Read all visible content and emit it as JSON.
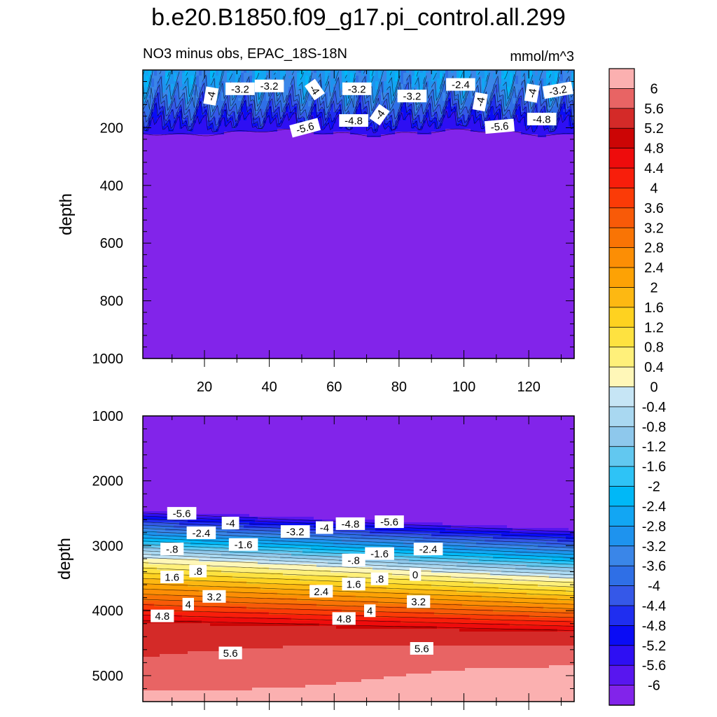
{
  "title": "b.e20.B1850.f09_g17.pi_control.all.299",
  "subtitle_left": "NO3 minus obs, EPAC_18S-18N",
  "subtitle_right": "mmol/m^3",
  "ylabel": "depth",
  "colorbar": {
    "levels": [
      -6,
      -5.6,
      -5.2,
      -4.8,
      -4.4,
      -4,
      -3.6,
      -3.2,
      -2.8,
      -2.4,
      -2,
      -1.6,
      -1.2,
      -0.8,
      -0.4,
      0,
      0.4,
      0.8,
      1.2,
      1.6,
      2,
      2.4,
      2.8,
      3.2,
      3.6,
      4,
      4.4,
      4.8,
      5.2,
      5.6,
      6
    ],
    "labels": [
      "-6",
      "-5.6",
      "-5.2",
      "-4.8",
      "-4.4",
      "-4",
      "-3.6",
      "-3.2",
      "-2.8",
      "-2.4",
      "-2",
      "-1.6",
      "-1.2",
      "-0.8",
      "-0.4",
      "0",
      "0.4",
      "0.8",
      "1.2",
      "1.6",
      "2",
      "2.4",
      "2.8",
      "3.2",
      "3.6",
      "4",
      "4.4",
      "4.8",
      "5.2",
      "5.6",
      "6"
    ],
    "colors": [
      "#8224ea",
      "#5816ef",
      "#2e0ff3",
      "#0a0cf5",
      "#1f2ef0",
      "#3558e8",
      "#2f6fe6",
      "#3a86e8",
      "#1e93ee",
      "#12a6f3",
      "#00b8f7",
      "#2ec3f6",
      "#62c8f0",
      "#8ec8ec",
      "#a9d8f1",
      "#c6e5f5",
      "#fff7b8",
      "#fff07a",
      "#fee240",
      "#fed220",
      "#fdb812",
      "#fda205",
      "#fc8e05",
      "#f97405",
      "#f85a08",
      "#fb3b07",
      "#f81e0b",
      "#ee0c0c",
      "#cc0505",
      "#d42a28",
      "#e86464",
      "#fbb0b0"
    ]
  },
  "chart_data": [
    {
      "type": "heatmap",
      "panel": "upper",
      "title": "NO3 minus obs, EPAC_18S-18N",
      "units": "mmol/m^3",
      "xlabel": "",
      "ylabel": "depth",
      "xlim": [
        1,
        134
      ],
      "ylim": [
        0,
        1000
      ],
      "y_inverted": true,
      "xticks": [
        20,
        40,
        60,
        80,
        100,
        120
      ],
      "xtick_labels": [
        "20",
        "40",
        "60",
        "80",
        "100",
        "120"
      ],
      "yticks": [
        200,
        400,
        600,
        800,
        1000
      ],
      "ytick_labels": [
        "200",
        "400",
        "600",
        "800",
        "1000"
      ],
      "contour_labels": [
        {
          "text": "-4",
          "x": 22,
          "y": 90,
          "rot": -80
        },
        {
          "text": "-3.2",
          "x": 31,
          "y": 65,
          "rot": 0
        },
        {
          "text": "-3.2",
          "x": 40,
          "y": 55,
          "rot": 0
        },
        {
          "text": "-4",
          "x": 54,
          "y": 68,
          "rot": 55
        },
        {
          "text": "-3.2",
          "x": 67,
          "y": 65,
          "rot": 0
        },
        {
          "text": "-3.2",
          "x": 84,
          "y": 90,
          "rot": 0
        },
        {
          "text": "-2.4",
          "x": 99,
          "y": 50,
          "rot": 0
        },
        {
          "text": "-4",
          "x": 105,
          "y": 110,
          "rot": -80
        },
        {
          "text": "-4",
          "x": 121,
          "y": 80,
          "rot": -80
        },
        {
          "text": "-3.2",
          "x": 129,
          "y": 70,
          "rot": -10
        },
        {
          "text": "-4.8",
          "x": 66,
          "y": 175,
          "rot": 0
        },
        {
          "text": "-4",
          "x": 74,
          "y": 155,
          "rot": -55
        },
        {
          "text": "-5.6",
          "x": 51,
          "y": 200,
          "rot": -15
        },
        {
          "text": "-4.8",
          "x": 124,
          "y": 170,
          "rot": 0
        },
        {
          "text": "-5.6",
          "x": 111,
          "y": 195,
          "rot": -5
        }
      ]
    },
    {
      "type": "heatmap",
      "panel": "lower",
      "xlim": [
        1,
        134
      ],
      "ylim": [
        1000,
        5400
      ],
      "y_inverted": true,
      "yticks": [
        1000,
        2000,
        3000,
        4000,
        5000
      ],
      "ytick_labels": [
        "1000",
        "2000",
        "3000",
        "4000",
        "5000"
      ],
      "contour_labels": [
        {
          "text": "-5.6",
          "x": 13,
          "y": 2500,
          "rot": 0
        },
        {
          "text": "-4",
          "x": 28,
          "y": 2650,
          "rot": 0
        },
        {
          "text": "-2.4",
          "x": 19,
          "y": 2800,
          "rot": 0
        },
        {
          "text": "-1.6",
          "x": 32,
          "y": 2980,
          "rot": 0
        },
        {
          "text": "-.8",
          "x": 10,
          "y": 3050,
          "rot": 0
        },
        {
          "text": "-3.2",
          "x": 48,
          "y": 2780,
          "rot": 0
        },
        {
          "text": "-4",
          "x": 57,
          "y": 2720,
          "rot": 0
        },
        {
          "text": "-4.8",
          "x": 65,
          "y": 2660,
          "rot": 0
        },
        {
          "text": "-5.6",
          "x": 77,
          "y": 2630,
          "rot": 0
        },
        {
          "text": "-.8",
          "x": 66,
          "y": 3220,
          "rot": 0
        },
        {
          "text": "-1.6",
          "x": 74,
          "y": 3120,
          "rot": 0
        },
        {
          "text": "-2.4",
          "x": 89,
          "y": 3050,
          "rot": 0
        },
        {
          "text": "1.6",
          "x": 10,
          "y": 3480,
          "rot": 0
        },
        {
          "text": ".8",
          "x": 18,
          "y": 3390,
          "rot": 0
        },
        {
          "text": "3.2",
          "x": 23,
          "y": 3780,
          "rot": 0
        },
        {
          "text": "4",
          "x": 15,
          "y": 3900,
          "rot": 0
        },
        {
          "text": "4.8",
          "x": 7,
          "y": 4080,
          "rot": 0
        },
        {
          "text": "2.4",
          "x": 56,
          "y": 3700,
          "rot": 0
        },
        {
          "text": "1.6",
          "x": 66,
          "y": 3590,
          "rot": 0
        },
        {
          "text": ".8",
          "x": 74,
          "y": 3510,
          "rot": 0
        },
        {
          "text": "0",
          "x": 85,
          "y": 3440,
          "rot": 0
        },
        {
          "text": "3.2",
          "x": 86,
          "y": 3860,
          "rot": 0
        },
        {
          "text": "4",
          "x": 71,
          "y": 4000,
          "rot": 0
        },
        {
          "text": "4.8",
          "x": 63,
          "y": 4120,
          "rot": 0
        },
        {
          "text": "5.6",
          "x": 28,
          "y": 4650,
          "rot": 0
        },
        {
          "text": "5.6",
          "x": 87,
          "y": 4580,
          "rot": 0
        }
      ]
    }
  ]
}
